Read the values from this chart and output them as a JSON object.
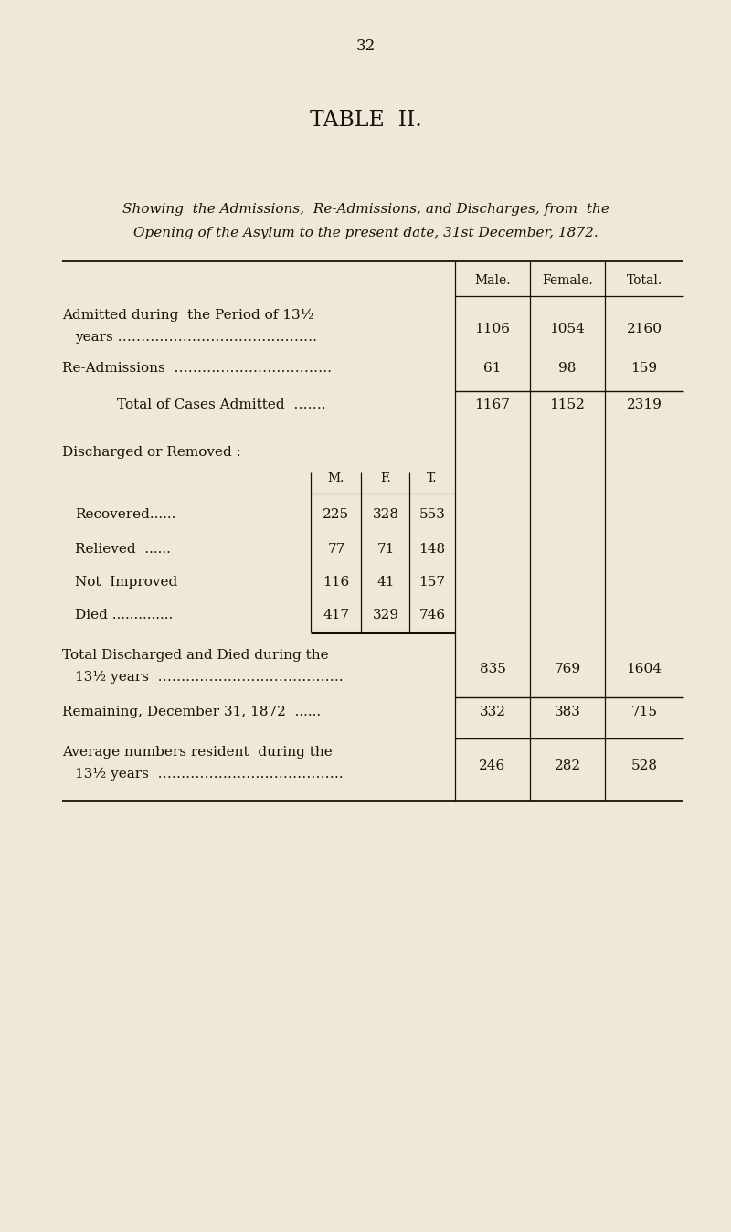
{
  "bg_color": "#ede8d8",
  "text_color": "#1a1008",
  "page_number": "32",
  "title": "TABLE  II.",
  "subtitle_line1": "Showing  the Admissions,  Re-Admissions, and Discharges, from  the",
  "subtitle_line2": "Opening of the Asylum to the present date, 31st December, 1872.",
  "col_headers": [
    "Male.",
    "Female.",
    "Total."
  ],
  "admitted_label1": "Admitted during  the Period of 13½",
  "admitted_label2": "years …………………………………….",
  "admitted_vals": [
    "1106",
    "1054",
    "2160"
  ],
  "readm_label": "Re-Admissions  …………………………….",
  "readm_vals": [
    "61",
    "98",
    "159"
  ],
  "total_cases_label": "Total of Cases Admitted  …….",
  "total_cases_vals": [
    "1167",
    "1152",
    "2319"
  ],
  "discharged_header": "Discharged or Removed :",
  "sub_headers": [
    "M.",
    "F.",
    "T."
  ],
  "sub_rows": [
    {
      "label": "Recovered......",
      "vals": [
        "225",
        "328",
        "553"
      ]
    },
    {
      "label": "Relieved  ......",
      "vals": [
        "77",
        "71",
        "148"
      ]
    },
    {
      "label": "Not  Improved",
      "vals": [
        "116",
        "41",
        "157"
      ]
    },
    {
      "label": "Died ..............",
      "vals": [
        "417",
        "329",
        "746"
      ]
    }
  ],
  "total_discharged_label1": "Total Discharged and Died during the",
  "total_discharged_label2": "13½ years  ………………………………….",
  "total_discharged_vals": [
    "835",
    "769",
    "1604"
  ],
  "remaining_label": "Remaining, December 31, 1872  ......",
  "remaining_vals": [
    "332",
    "383",
    "715"
  ],
  "average_label1": "Average numbers resident  during the",
  "average_label2": "13½ years  ………………………………….",
  "average_vals": [
    "246",
    "282",
    "528"
  ]
}
